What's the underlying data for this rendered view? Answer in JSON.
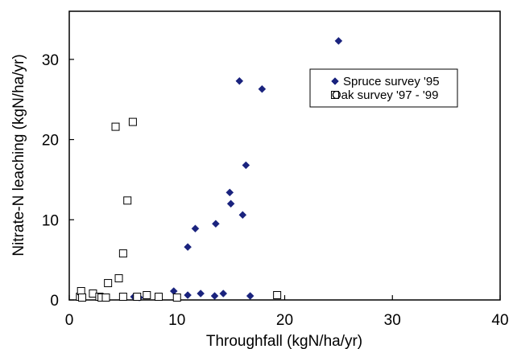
{
  "chart_data": {
    "type": "scatter",
    "xlabel": "Throughfall (kgN/ha/yr)",
    "ylabel": "Nitrate-N leaching (kgN/ha/yr)",
    "xlim": [
      0,
      40
    ],
    "ylim": [
      0,
      36
    ],
    "xticks": [
      "0",
      "10",
      "20",
      "30",
      "40"
    ],
    "xtick_values": [
      0,
      10,
      20,
      30,
      40
    ],
    "yticks": [
      "0",
      "10",
      "20",
      "30"
    ],
    "ytick_values": [
      0,
      10,
      20,
      30
    ],
    "grid": false,
    "legend_position": "top-right",
    "series": [
      {
        "name": "Spruce survey '95",
        "marker": "filled-diamond",
        "color": "#1a237e",
        "points": [
          [
            6.0,
            0.4
          ],
          [
            6.5,
            0.3
          ],
          [
            9.7,
            1.1
          ],
          [
            11.0,
            0.6
          ],
          [
            11.0,
            6.6
          ],
          [
            11.7,
            8.9
          ],
          [
            12.2,
            0.8
          ],
          [
            13.5,
            0.5
          ],
          [
            13.6,
            9.5
          ],
          [
            14.3,
            0.8
          ],
          [
            14.9,
            13.4
          ],
          [
            15.0,
            12.0
          ],
          [
            15.8,
            27.3
          ],
          [
            16.1,
            10.6
          ],
          [
            16.4,
            16.8
          ],
          [
            16.8,
            0.5
          ],
          [
            17.9,
            26.3
          ],
          [
            25.0,
            32.3
          ],
          [
            24.9,
            27.4
          ]
        ]
      },
      {
        "name": "Oak survey '97 - '99",
        "marker": "open-square",
        "color": "#000000",
        "points": [
          [
            1.0,
            0.4
          ],
          [
            1.1,
            1.1
          ],
          [
            1.2,
            0.3
          ],
          [
            2.2,
            0.8
          ],
          [
            2.8,
            0.4
          ],
          [
            3.0,
            0.3
          ],
          [
            3.4,
            0.3
          ],
          [
            3.6,
            2.1
          ],
          [
            4.3,
            21.6
          ],
          [
            4.6,
            2.7
          ],
          [
            5.0,
            5.8
          ],
          [
            5.0,
            0.4
          ],
          [
            5.4,
            12.4
          ],
          [
            5.9,
            22.2
          ],
          [
            6.3,
            0.4
          ],
          [
            7.2,
            0.6
          ],
          [
            8.3,
            0.4
          ],
          [
            10.0,
            0.3
          ],
          [
            19.3,
            0.6
          ]
        ]
      }
    ]
  }
}
